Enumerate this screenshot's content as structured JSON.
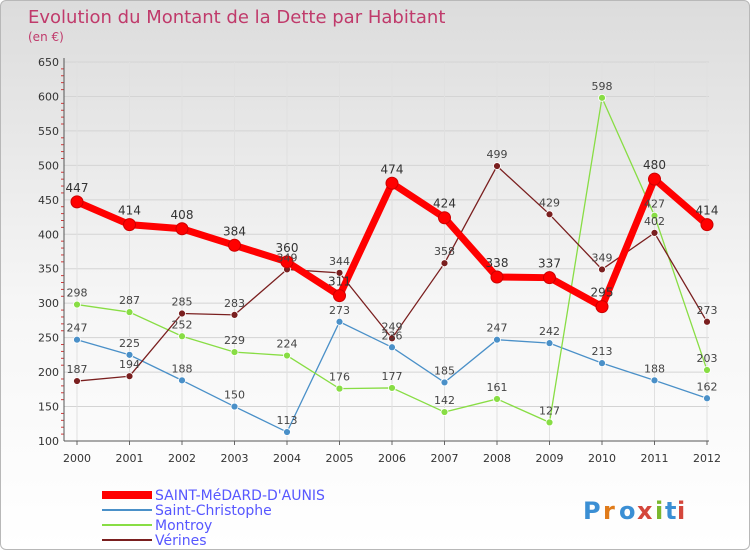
{
  "chart_data": {
    "type": "line",
    "title": "Evolution du Montant de la Dette par Habitant",
    "subtitle": "(en €)",
    "x": [
      "2000",
      "2001",
      "2002",
      "2003",
      "2004",
      "2005",
      "2006",
      "2007",
      "2008",
      "2009",
      "2010",
      "2011",
      "2012"
    ],
    "ylim": [
      100,
      650
    ],
    "yticks": [
      100,
      150,
      200,
      250,
      300,
      350,
      400,
      450,
      500,
      550,
      600,
      650
    ],
    "grid": true,
    "legend_position": "bottom-left",
    "series": [
      {
        "name": "SAINT-MéDARD-D'AUNIS",
        "color": "#ff0000",
        "values": [
          447,
          414,
          408,
          384,
          360,
          311,
          474,
          424,
          338,
          337,
          295,
          480,
          414
        ]
      },
      {
        "name": "Saint-Christophe",
        "color": "#4a90c8",
        "values": [
          247,
          225,
          188,
          150,
          113,
          273,
          236,
          185,
          247,
          242,
          213,
          188,
          162
        ]
      },
      {
        "name": "Montroy",
        "color": "#88dd44",
        "values": [
          298,
          287,
          252,
          229,
          224,
          176,
          177,
          142,
          161,
          127,
          598,
          427,
          203
        ]
      },
      {
        "name": "Vérines",
        "color": "#7a1f1f",
        "values": [
          187,
          194,
          285,
          283,
          349,
          344,
          249,
          358,
          499,
          429,
          349,
          402,
          273
        ]
      }
    ],
    "logo": "Proxiti"
  }
}
